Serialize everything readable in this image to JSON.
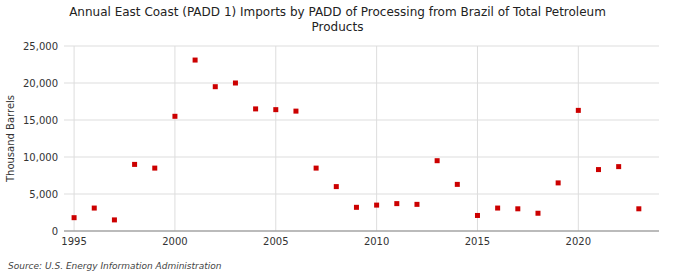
{
  "chart_data": {
    "type": "scatter",
    "title": "Annual East Coast (PADD 1) Imports by PADD of Processing from Brazil of Total Petroleum\nProducts",
    "y_label": "Thousand Barrels",
    "source": "Source: U.S. Energy Information Administration",
    "x": [
      1995,
      1996,
      1997,
      1998,
      1999,
      2000,
      2001,
      2002,
      2003,
      2004,
      2005,
      2006,
      2007,
      2008,
      2009,
      2010,
      2011,
      2012,
      2013,
      2014,
      2015,
      2016,
      2017,
      2018,
      2019,
      2020,
      2021,
      2022,
      2023
    ],
    "values": [
      1800,
      3100,
      1500,
      9000,
      8500,
      15500,
      23100,
      19500,
      20000,
      16500,
      16400,
      16200,
      8500,
      6000,
      3200,
      3500,
      3700,
      3600,
      9500,
      6300,
      2100,
      3100,
      3000,
      2400,
      6500,
      16300,
      8300,
      8700,
      3000
    ],
    "color": "#cc0000",
    "marker": "square",
    "xlim": [
      1994.5,
      2024
    ],
    "ylim": [
      0,
      25000
    ],
    "xticks": [
      1995,
      2000,
      2005,
      2010,
      2015,
      2020
    ],
    "yticks": [
      0,
      {
        "value": 5000,
        "label": "5,000"
      },
      {
        "value": 10000,
        "label": "10,000"
      },
      {
        "value": 15000,
        "label": "15,000"
      },
      {
        "value": 20000,
        "label": "20,000"
      },
      {
        "value": 25000,
        "label": "25,000"
      }
    ],
    "grid": true
  }
}
